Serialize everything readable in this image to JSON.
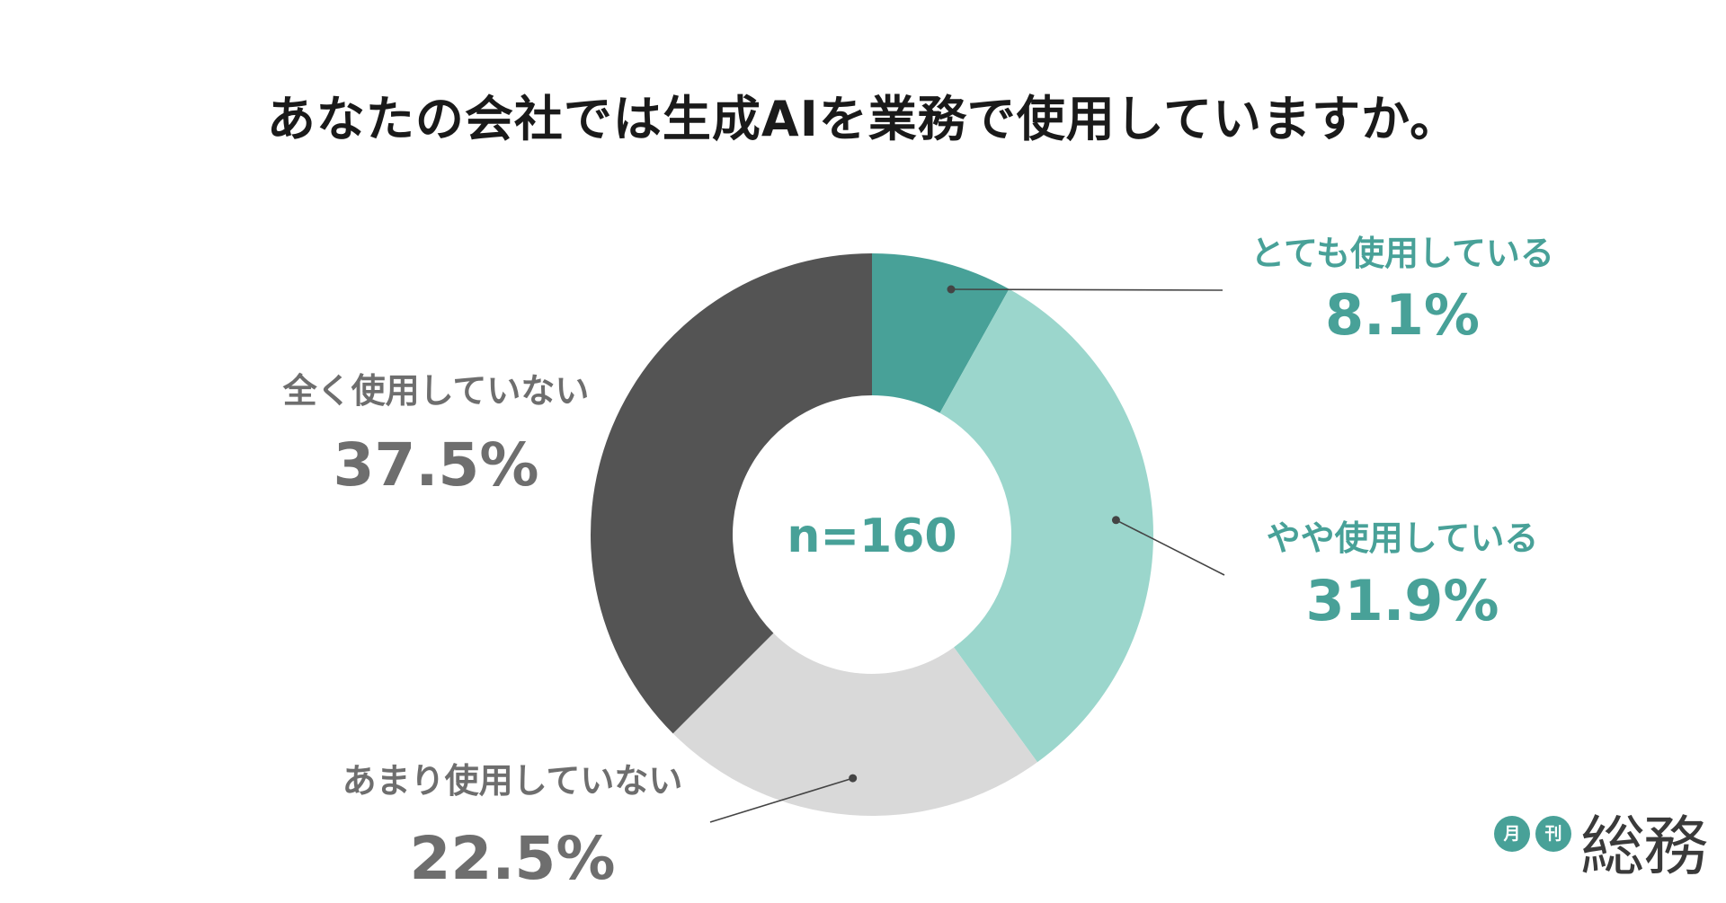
{
  "title": "あなたの会社では生成AIを業務で使用していますか。",
  "center_label": "n=160",
  "logo": {
    "badge_1": "月",
    "badge_2": "刊",
    "name": "総務"
  },
  "colors": {
    "teal_dark": "#48a198",
    "teal_light": "#9bd6cc",
    "gray_light": "#d9d9d9",
    "gray_dark": "#545454",
    "label_teal": "#48a198",
    "label_gray": "#6e6e6e",
    "leader_line": "#444444"
  },
  "chart_data": {
    "type": "pie",
    "variant": "donut",
    "title": "あなたの会社では生成AIを業務で使用していますか。",
    "n": 160,
    "slices": [
      {
        "label": "とても使用している",
        "value": 8.1,
        "value_label": "8.1%",
        "color": "#48a198",
        "label_color": "#48a198"
      },
      {
        "label": "やや使用している",
        "value": 31.9,
        "value_label": "31.9%",
        "color": "#9bd6cc",
        "label_color": "#48a198"
      },
      {
        "label": "あまり使用していない",
        "value": 22.5,
        "value_label": "22.5%",
        "color": "#d9d9d9",
        "label_color": "#6e6e6e"
      },
      {
        "label": "全く使用していない",
        "value": 37.5,
        "value_label": "37.5%",
        "color": "#545454",
        "label_color": "#6e6e6e"
      }
    ],
    "start_angle": "12 o'clock",
    "direction": "clockwise"
  }
}
